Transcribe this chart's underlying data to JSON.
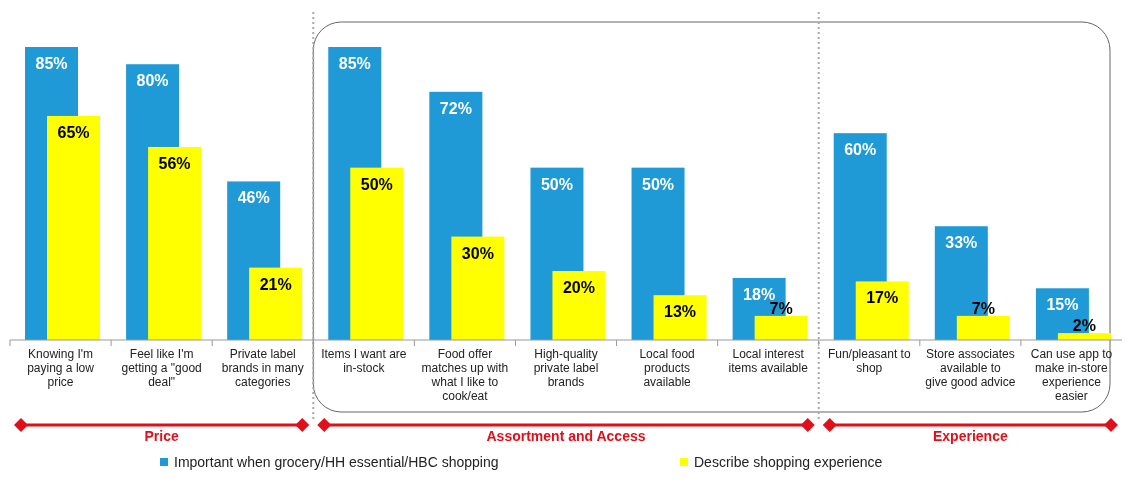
{
  "chart_data": {
    "type": "bar",
    "categories": [
      "Knowing I'm paying a low price",
      "Feel like I'm getting a \"good deal\"",
      "Private label brands in many categories",
      "Items I want are in-stock",
      "Food offer matches up with what I like to cook/eat",
      "High-quality private label brands",
      "Local food products available",
      "Local interest items available",
      "Fun/pleasant to shop",
      "Store associates available to give good advice",
      "Can use app to make in-store experience easier"
    ],
    "series": [
      {
        "name": "Important when grocery/HH essential/HBC shopping",
        "color": "#1f9ad6",
        "values": [
          85,
          80,
          46,
          85,
          72,
          50,
          50,
          18,
          60,
          33,
          15
        ],
        "value_labels": [
          "85%",
          "80%",
          "46%",
          "85%",
          "72%",
          "50%",
          "50%",
          "18%",
          "60%",
          "33%",
          "15%"
        ]
      },
      {
        "name": "Describe shopping experience",
        "color": "#ffff00",
        "values": [
          65,
          56,
          21,
          50,
          30,
          20,
          13,
          7,
          17,
          7,
          2
        ],
        "value_labels": [
          "65%",
          "56%",
          "21%",
          "50%",
          "30%",
          "20%",
          "13%",
          "7%",
          "17%",
          "7%",
          "2%"
        ]
      }
    ],
    "legend": "bottom",
    "annotations": [
      "Price",
      "Assortment and Access",
      "Experience"
    ]
  }
}
